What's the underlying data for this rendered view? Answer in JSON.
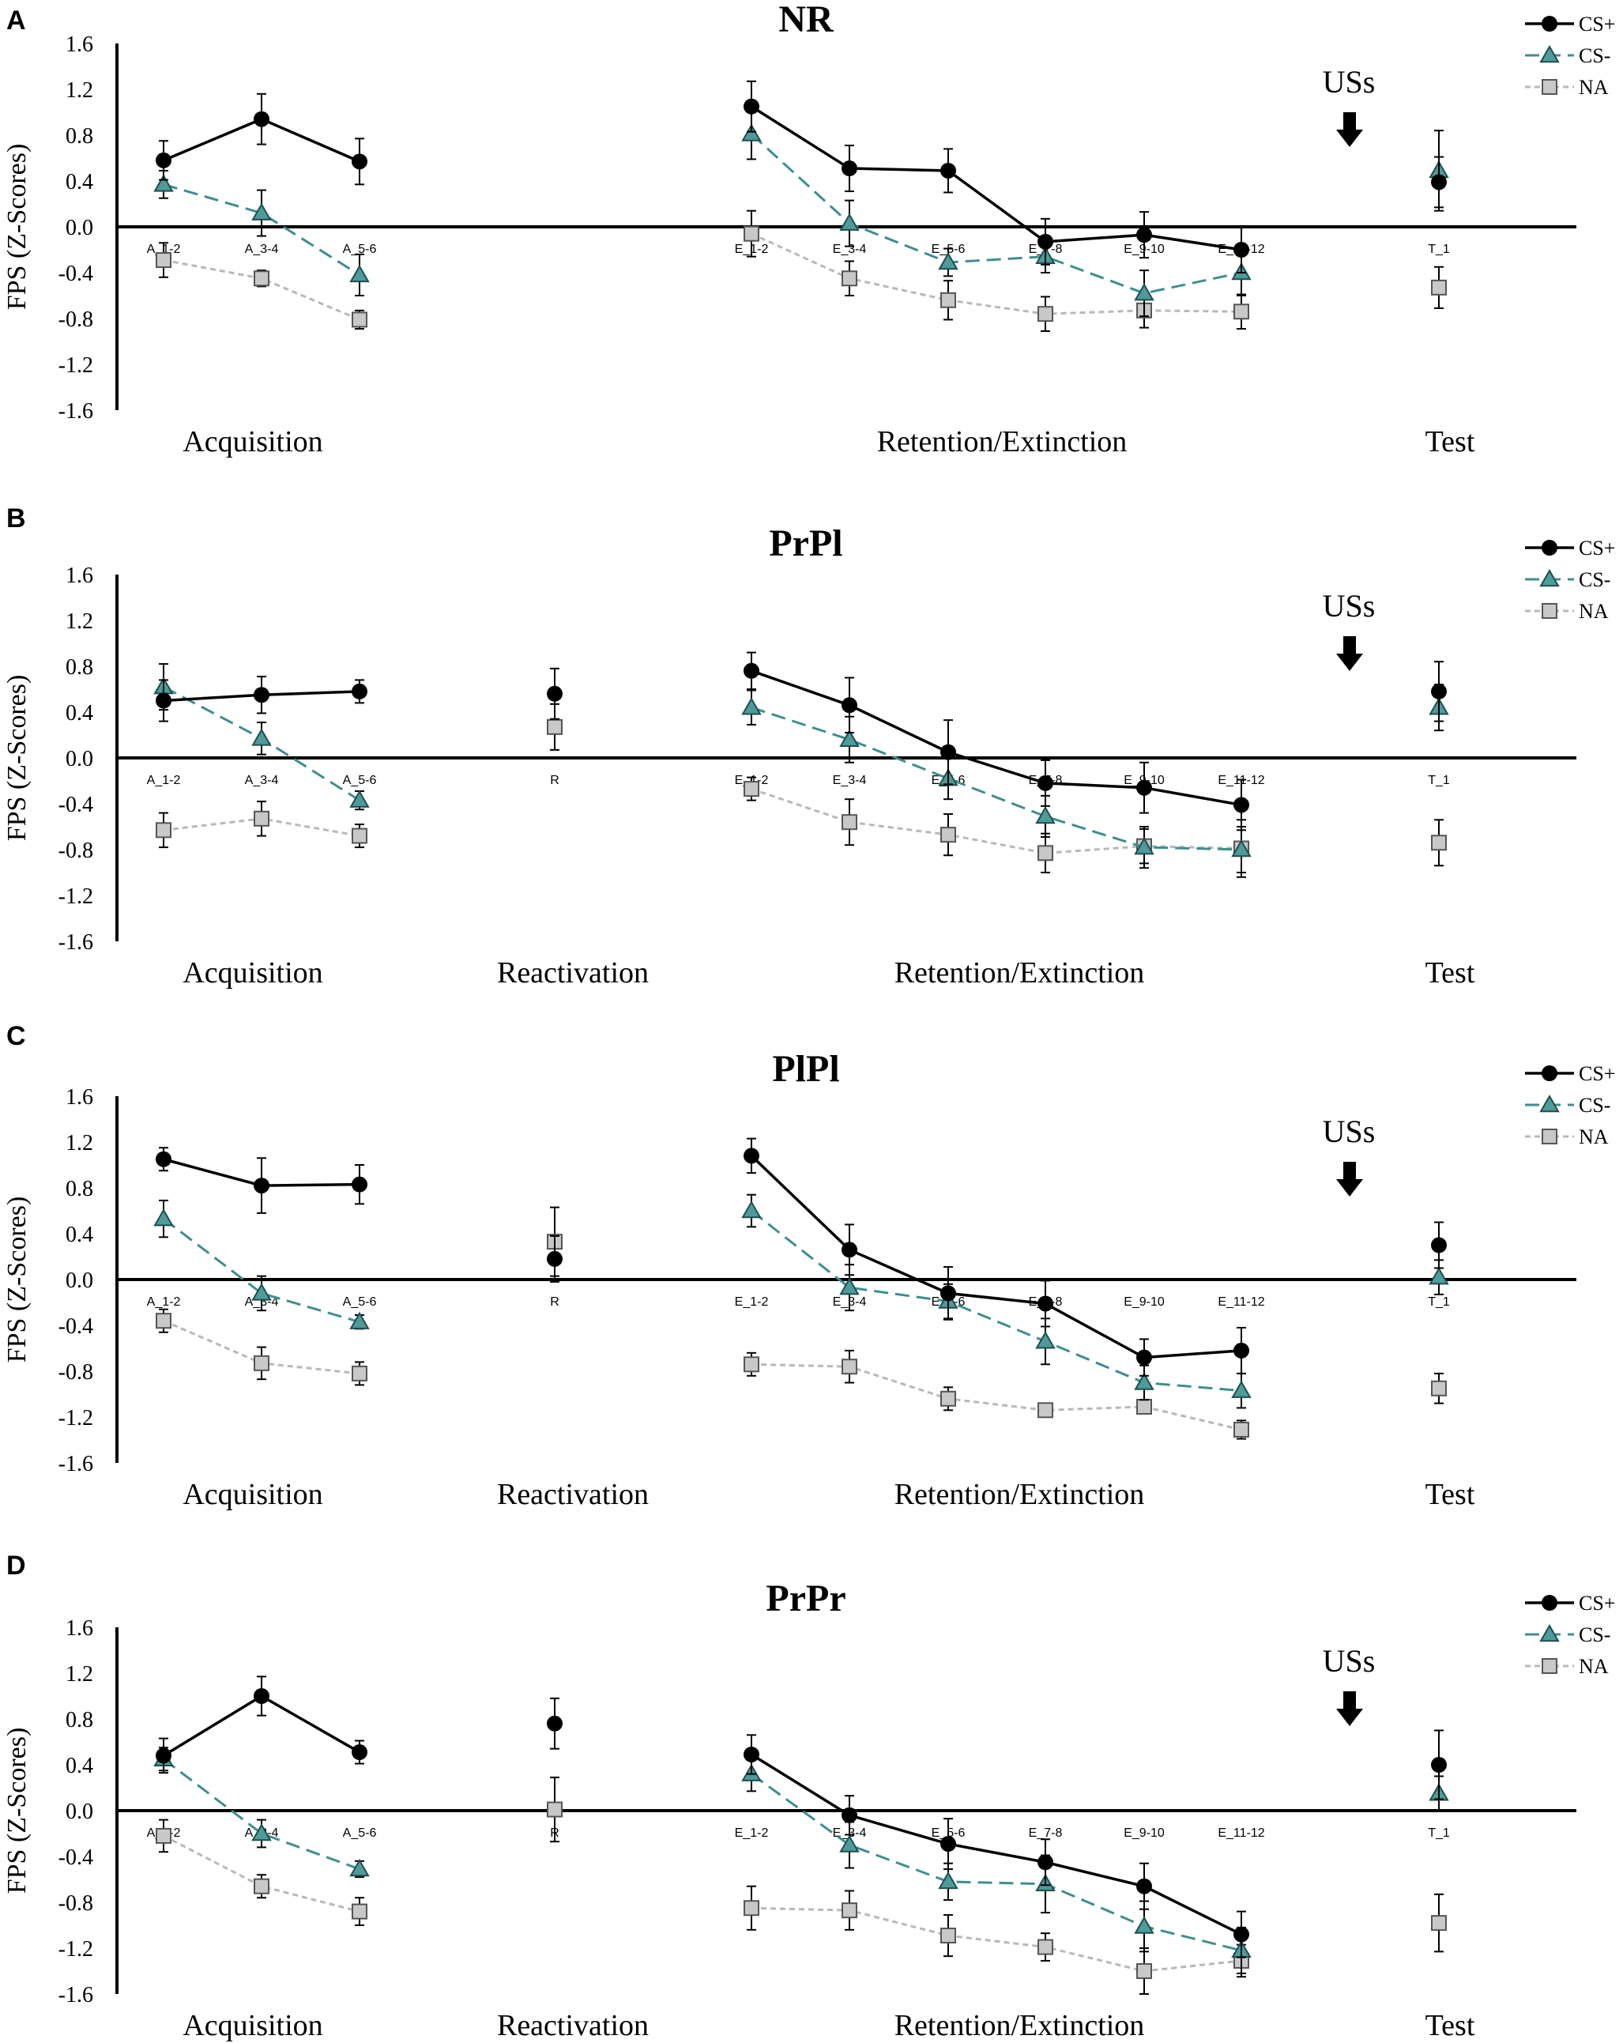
{
  "chart_data": [
    {
      "panel": "A",
      "type": "line",
      "title": "NR",
      "ylabel": "FPS (Z-Scores)",
      "ylim": [
        -1.6,
        1.6
      ],
      "yticks": [
        "1.6",
        "1.2",
        "0.8",
        "0.4",
        "0.0",
        "-0.4",
        "-0.8",
        "-1.2",
        "-1.6"
      ],
      "categories": [
        "A_1-2",
        "A_3-4",
        "A_5-6",
        "E_1-2",
        "E_3-4",
        "E_5-6",
        "E_7-8",
        "E_9-10",
        "E_11-12",
        "T_1"
      ],
      "phases": [
        "Acquisition",
        "Retention/Extinction",
        "Test"
      ],
      "annotation": "USs",
      "series": [
        {
          "name": "CS+",
          "values": [
            0.58,
            0.94,
            0.57,
            1.05,
            0.51,
            0.49,
            -0.13,
            -0.07,
            -0.2,
            0.39
          ],
          "errors": [
            0.17,
            0.22,
            0.2,
            0.22,
            0.2,
            0.19,
            0.2,
            0.2,
            0.2,
            0.22
          ]
        },
        {
          "name": "CS-",
          "values": [
            0.37,
            0.12,
            -0.42,
            0.81,
            0.03,
            -0.31,
            -0.26,
            -0.58,
            -0.4,
            0.49
          ],
          "errors": [
            0.12,
            0.2,
            0.18,
            0.22,
            0.2,
            0.12,
            0.14,
            0.2,
            0.2,
            0.35
          ]
        },
        {
          "name": "NA",
          "values": [
            -0.29,
            -0.45,
            -0.81,
            -0.06,
            -0.45,
            -0.64,
            -0.76,
            -0.73,
            -0.74,
            -0.53
          ],
          "errors": [
            0.15,
            0.07,
            0.08,
            0.2,
            0.15,
            0.17,
            0.15,
            0.15,
            0.15,
            0.18
          ]
        }
      ]
    },
    {
      "panel": "B",
      "type": "line",
      "title": "PrPl",
      "ylabel": "FPS (Z-Scores)",
      "ylim": [
        -1.6,
        1.6
      ],
      "yticks": [
        "1.6",
        "1.2",
        "0.8",
        "0.4",
        "0.0",
        "-0.4",
        "-0.8",
        "-1.2",
        "-1.6"
      ],
      "categories": [
        "A_1-2",
        "A_3-4",
        "A_5-6",
        "R",
        "E_1-2",
        "E_3-4",
        "E_5-6",
        "E_7-8",
        "E_9-10",
        "E_11-12",
        "T_1"
      ],
      "phases": [
        "Acquisition",
        "Reactivation",
        "Retention/Extinction",
        "Test"
      ],
      "annotation": "USs",
      "series": [
        {
          "name": "CS+",
          "values": [
            0.5,
            0.55,
            0.58,
            0.56,
            0.76,
            0.46,
            0.05,
            -0.22,
            -0.26,
            -0.41,
            0.58
          ],
          "errors": [
            0.18,
            0.16,
            0.1,
            0.22,
            0.16,
            0.24,
            0.28,
            0.2,
            0.22,
            0.22,
            0.26
          ]
        },
        {
          "name": "CS-",
          "values": [
            0.62,
            0.17,
            -0.37,
            null,
            0.44,
            0.16,
            -0.18,
            -0.51,
            -0.78,
            -0.8,
            0.44
          ],
          "errors": [
            0.2,
            0.14,
            0.08,
            null,
            0.15,
            0.2,
            0.18,
            0.18,
            0.18,
            0.2,
            0.2
          ]
        },
        {
          "name": "NA",
          "values": [
            -0.63,
            -0.53,
            -0.68,
            0.27,
            -0.27,
            -0.56,
            -0.67,
            -0.83,
            -0.77,
            -0.79,
            -0.74
          ],
          "errors": [
            0.15,
            0.15,
            0.1,
            0.2,
            0.1,
            0.2,
            0.18,
            0.17,
            0.15,
            0.25,
            0.2
          ]
        }
      ]
    },
    {
      "panel": "C",
      "type": "line",
      "title": "PlPl",
      "ylabel": "FPS (Z-Scores)",
      "ylim": [
        -1.6,
        1.6
      ],
      "yticks": [
        "1.6",
        "1.2",
        "0.8",
        "0.4",
        "0.0",
        "-0.4",
        "-0.8",
        "-1.2",
        "-1.6"
      ],
      "categories": [
        "A_1-2",
        "A_3-4",
        "A_5-6",
        "R",
        "E_1-2",
        "E_3-4",
        "E_5-6",
        "E_7-8",
        "E_9-10",
        "E_11-12",
        "T_1"
      ],
      "phases": [
        "Acquisition",
        "Reactivation",
        "Retention/Extinction",
        "Test"
      ],
      "annotation": "USs",
      "series": [
        {
          "name": "CS+",
          "values": [
            1.05,
            0.82,
            0.83,
            0.18,
            1.08,
            0.26,
            -0.12,
            -0.21,
            -0.68,
            -0.62,
            0.3
          ],
          "errors": [
            0.1,
            0.24,
            0.17,
            0.2,
            0.15,
            0.22,
            0.23,
            0.2,
            0.16,
            0.2,
            0.2
          ]
        },
        {
          "name": "CS-",
          "values": [
            0.53,
            -0.12,
            -0.37,
            null,
            0.6,
            -0.07,
            -0.19,
            -0.54,
            -0.9,
            -0.97,
            0.02
          ],
          "errors": [
            0.16,
            0.15,
            0.06,
            null,
            0.14,
            0.2,
            0.15,
            0.2,
            0.15,
            0.15,
            0.15
          ]
        },
        {
          "name": "NA",
          "values": [
            -0.36,
            -0.73,
            -0.82,
            0.33,
            -0.74,
            -0.76,
            -1.04,
            -1.14,
            -1.11,
            -1.31,
            -0.95
          ],
          "errors": [
            0.1,
            0.14,
            0.1,
            0.3,
            0.1,
            0.14,
            0.1,
            0.05,
            0.05,
            0.08,
            0.13
          ]
        }
      ]
    },
    {
      "panel": "D",
      "type": "line",
      "title": "PrPr",
      "ylabel": "FPS (Z-Scores)",
      "ylim": [
        -1.6,
        1.6
      ],
      "yticks": [
        "1.6",
        "1.2",
        "0.8",
        "0.4",
        "0.0",
        "-0.4",
        "-0.8",
        "-1.2",
        "-1.6"
      ],
      "categories": [
        "A_1-2",
        "A_3-4",
        "A_5-6",
        "R",
        "E_1-2",
        "E_3-4",
        "E_5-6",
        "E_7-8",
        "E_9-10",
        "E_11-12",
        "T_1"
      ],
      "phases": [
        "Acquisition",
        "Reactivation",
        "Retention/Extinction",
        "Test"
      ],
      "annotation": "USs",
      "series": [
        {
          "name": "CS+",
          "values": [
            0.48,
            1.0,
            0.51,
            0.76,
            0.49,
            -0.04,
            -0.29,
            -0.45,
            -0.66,
            -1.08,
            0.4
          ],
          "errors": [
            0.15,
            0.17,
            0.1,
            0.22,
            0.17,
            0.17,
            0.22,
            0.2,
            0.2,
            0.2,
            0.3
          ]
        },
        {
          "name": "CS-",
          "values": [
            0.45,
            -0.2,
            -0.51,
            null,
            0.32,
            -0.3,
            -0.62,
            -0.64,
            -1.01,
            -1.22,
            0.15
          ],
          "errors": [
            0.1,
            0.12,
            0.07,
            null,
            0.15,
            0.2,
            0.16,
            0.25,
            0.22,
            0.2,
            0.15
          ]
        },
        {
          "name": "NA",
          "values": [
            -0.22,
            -0.66,
            -0.88,
            0.01,
            -0.85,
            -0.87,
            -1.09,
            -1.19,
            -1.4,
            -1.31,
            -0.98
          ],
          "errors": [
            0.14,
            0.1,
            0.12,
            0.28,
            0.19,
            0.17,
            0.18,
            0.12,
            0.2,
            0.14,
            0.25
          ]
        }
      ]
    }
  ]
}
